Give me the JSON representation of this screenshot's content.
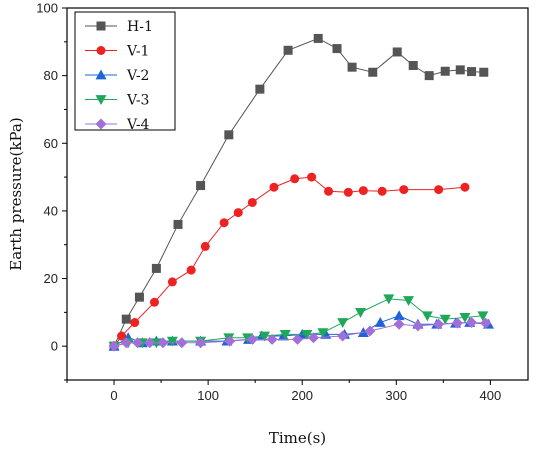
{
  "chart_data": {
    "type": "line",
    "title": "",
    "xlabel": "Time(s)",
    "ylabel": "Earth pressure(kPa)",
    "xlim": [
      -50,
      440
    ],
    "ylim": [
      -10,
      100
    ],
    "xticks": [
      0,
      100,
      200,
      300,
      400
    ],
    "yticks": [
      0,
      20,
      40,
      60,
      80,
      100
    ],
    "grid": false,
    "legend_position": "top-left",
    "series": [
      {
        "name": "H-1",
        "color": "#555555",
        "marker": "square",
        "points": [
          [
            0,
            0
          ],
          [
            13,
            8
          ],
          [
            27,
            14.5
          ],
          [
            45,
            23
          ],
          [
            68,
            36
          ],
          [
            92,
            47.5
          ],
          [
            122,
            62.5
          ],
          [
            155,
            76
          ],
          [
            185,
            87.5
          ],
          [
            217,
            91
          ],
          [
            237,
            88
          ],
          [
            253,
            82.5
          ],
          [
            275,
            81
          ],
          [
            301,
            87
          ],
          [
            318,
            83
          ],
          [
            335,
            80
          ],
          [
            352,
            81.3
          ],
          [
            368,
            81.7
          ],
          [
            380,
            81.2
          ],
          [
            393,
            81
          ]
        ]
      },
      {
        "name": "V-1",
        "color": "#ee2222",
        "marker": "circle",
        "points": [
          [
            0,
            0
          ],
          [
            8,
            3
          ],
          [
            22,
            7
          ],
          [
            43,
            13
          ],
          [
            62,
            19
          ],
          [
            82,
            22.5
          ],
          [
            97,
            29.5
          ],
          [
            117,
            36.5
          ],
          [
            132,
            39.5
          ],
          [
            147,
            42.5
          ],
          [
            170,
            47
          ],
          [
            192,
            49.5
          ],
          [
            210,
            50
          ],
          [
            228,
            45.8
          ],
          [
            249,
            45.5
          ],
          [
            265,
            46
          ],
          [
            285,
            45.8
          ],
          [
            308,
            46.3
          ],
          [
            345,
            46.3
          ],
          [
            373,
            47
          ]
        ]
      },
      {
        "name": "V-2",
        "color": "#1e64d8",
        "marker": "triangle-up",
        "points": [
          [
            0,
            0
          ],
          [
            15,
            2.5
          ],
          [
            30,
            1
          ],
          [
            45,
            1.5
          ],
          [
            62,
            1.5
          ],
          [
            92,
            1.5
          ],
          [
            120,
            1.5
          ],
          [
            143,
            2
          ],
          [
            157,
            3
          ],
          [
            180,
            3
          ],
          [
            200,
            3.5
          ],
          [
            225,
            3.5
          ],
          [
            245,
            3.5
          ],
          [
            265,
            4
          ],
          [
            283,
            7
          ],
          [
            303,
            9
          ],
          [
            323,
            6.5
          ],
          [
            343,
            6.5
          ],
          [
            363,
            6.8
          ],
          [
            378,
            7
          ],
          [
            398,
            6.5
          ]
        ]
      },
      {
        "name": "V-3",
        "color": "#1fa85a",
        "marker": "triangle-down",
        "points": [
          [
            0,
            0
          ],
          [
            15,
            1
          ],
          [
            30,
            1
          ],
          [
            45,
            1
          ],
          [
            62,
            1.5
          ],
          [
            92,
            1.5
          ],
          [
            122,
            2.5
          ],
          [
            142,
            2.5
          ],
          [
            160,
            3
          ],
          [
            182,
            3.5
          ],
          [
            205,
            3.5
          ],
          [
            222,
            4
          ],
          [
            243,
            7
          ],
          [
            262,
            10
          ],
          [
            292,
            14
          ],
          [
            313,
            13.5
          ],
          [
            333,
            9
          ],
          [
            352,
            8
          ],
          [
            373,
            8.5
          ],
          [
            392,
            9
          ]
        ]
      },
      {
        "name": "V-4",
        "color": "#a070d8",
        "marker": "diamond",
        "points": [
          [
            0,
            0
          ],
          [
            13,
            1
          ],
          [
            25,
            1
          ],
          [
            38,
            1
          ],
          [
            52,
            1
          ],
          [
            72,
            1
          ],
          [
            92,
            1
          ],
          [
            123,
            1.5
          ],
          [
            147,
            2
          ],
          [
            168,
            2
          ],
          [
            195,
            2
          ],
          [
            212,
            2.5
          ],
          [
            243,
            3
          ],
          [
            272,
            4.5
          ],
          [
            303,
            6.5
          ],
          [
            323,
            6
          ],
          [
            345,
            6.5
          ],
          [
            365,
            6.8
          ],
          [
            380,
            7
          ],
          [
            395,
            6.8
          ]
        ]
      }
    ]
  }
}
